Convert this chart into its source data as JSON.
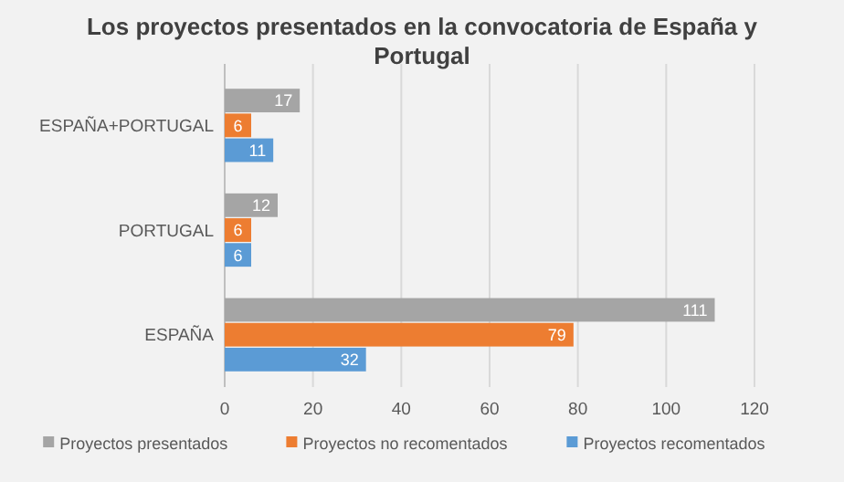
{
  "chart_data": {
    "type": "bar",
    "orientation": "horizontal",
    "title": "Los proyectos presentados en la convocatoria de España y Portugal",
    "categories": [
      "ESPAÑA+PORTUGAL",
      "PORTUGAL",
      "ESPAÑA"
    ],
    "series": [
      {
        "name": "Proyectos presentados",
        "color": "#a5a5a5",
        "values": [
          17,
          12,
          111
        ]
      },
      {
        "name": "Proyectos no recomentados",
        "color": "#ed7d31",
        "values": [
          6,
          6,
          79
        ]
      },
      {
        "name": "Proyectos recomentados",
        "color": "#5b9bd5",
        "values": [
          11,
          6,
          32
        ]
      }
    ],
    "xlim": [
      0,
      120
    ],
    "xticks": [
      0,
      20,
      40,
      60,
      80,
      100,
      120
    ],
    "grid": "x",
    "legend": "bottom",
    "data_labels": true
  }
}
